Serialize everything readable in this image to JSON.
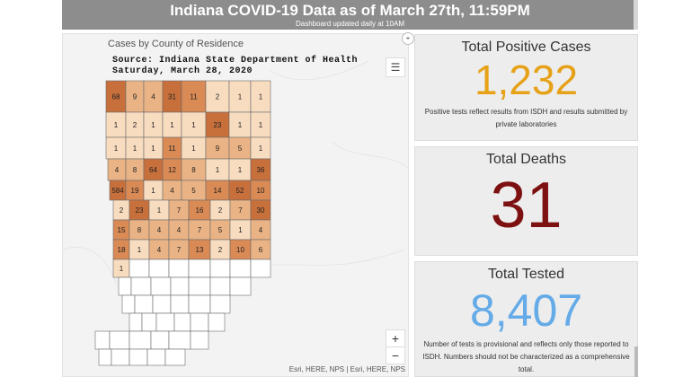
{
  "header": {
    "title": "Indiana COVID-19 Data as of March 27th, 11:59PM",
    "subtitle": "Dashboard updated daily at 10AM"
  },
  "map": {
    "title": "Cases by County of Residence",
    "source_line1": "Source: Indiana State Department of Health",
    "source_line2": "Saturday, March 28, 2020",
    "attribution": "Esri, HERE, NPS | Esri, HERE, NPS",
    "list_icon": "list-icon",
    "zoom_in": "+",
    "zoom_out": "−",
    "county_labels": [
      "68",
      "9",
      "4",
      "31",
      "11",
      "2",
      "1",
      "1",
      "1",
      "2",
      "1",
      "1",
      "1",
      "23",
      "1",
      "1",
      "1",
      "1",
      "1",
      "11",
      "1",
      "9",
      "5",
      "1",
      "4",
      "8",
      "64",
      "12",
      "8",
      "1",
      "1",
      "36",
      "584",
      "19",
      "1",
      "4",
      "5",
      "14",
      "52",
      "10",
      "2",
      "23",
      "1",
      "7",
      "16",
      "2",
      "7",
      "30",
      "15",
      "8",
      "4",
      "4",
      "7",
      "5",
      "1",
      "4",
      "18",
      "1",
      "4",
      "7",
      "13",
      "2",
      "10",
      "6",
      "1"
    ],
    "colors": {
      "light": "#f8dcbf",
      "mid": "#eab385",
      "dark": "#d98a55",
      "darkest": "#c8703c",
      "background": "#f3f3f3"
    }
  },
  "panels": {
    "positive": {
      "title": "Total Positive Cases",
      "value": "1,232",
      "note": "Positive tests reflect results from ISDH and results submitted by private laboratories",
      "color": "#e6a117"
    },
    "deaths": {
      "title": "Total Deaths",
      "value": "31",
      "color": "#7d1111"
    },
    "tested": {
      "title": "Total Tested",
      "value": "8,407",
      "note": "Number of tests is provisional and reflects only those reported to ISDH. Numbers should not be characterized as a comprehensive total.",
      "color": "#65abe8"
    }
  }
}
